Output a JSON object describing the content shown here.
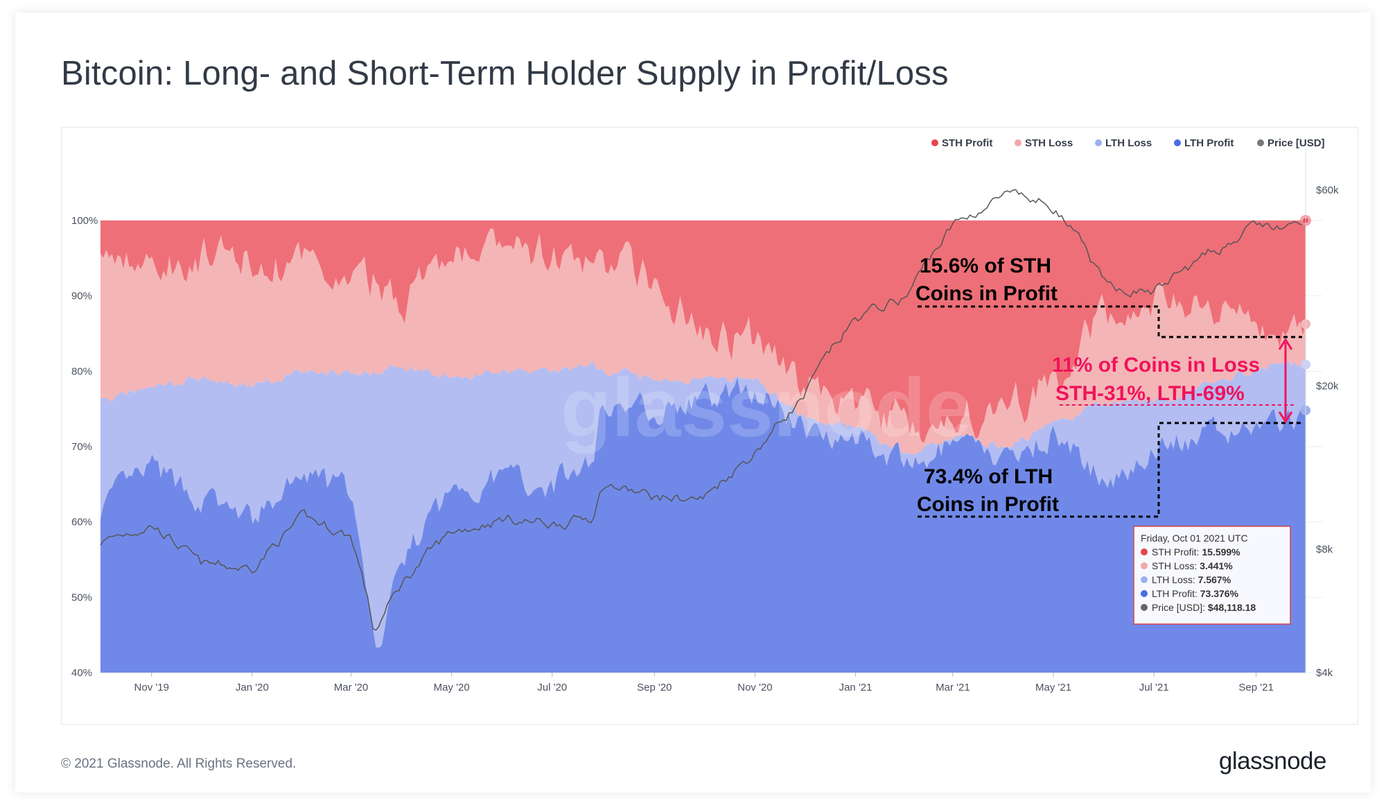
{
  "title": "Bitcoin: Long- and Short-Term Holder Supply in Profit/Loss",
  "footer": {
    "copyright": "© 2021 Glassnode. All Rights Reserved.",
    "brand": "glassnode"
  },
  "watermark": "glassnode",
  "colors": {
    "sth_profit": "#ee6f78",
    "sth_loss": "#f4b5b6",
    "lth_loss": "#b3bdf1",
    "lth_profit": "#7089e8",
    "price": "#555555",
    "accent": "#f0135c"
  },
  "legend": [
    {
      "label": "STH Profit",
      "color": "#e8454f"
    },
    {
      "label": "STH Loss",
      "color": "#f4a6a8"
    },
    {
      "label": "LTH Loss",
      "color": "#9db0ef"
    },
    {
      "label": "LTH Profit",
      "color": "#4a6de3"
    },
    {
      "label": "Price [USD]",
      "color": "#777777"
    }
  ],
  "annotations": {
    "sth_profit": [
      "15.6% of STH",
      "Coins in Profit"
    ],
    "lth_profit": [
      "73.4% of LTH",
      "Coins in Profit"
    ],
    "loss": [
      "11% of Coins in Loss",
      "STH-31%, LTH-69%"
    ]
  },
  "tooltip": {
    "date": "Friday, Oct 01 2021 UTC",
    "rows": [
      {
        "label": "STH Profit:",
        "value": "15.599%",
        "color": "#e8454f"
      },
      {
        "label": "STH Loss:",
        "value": "3.441%",
        "color": "#f4a6a8"
      },
      {
        "label": "LTH Loss:",
        "value": "7.567%",
        "color": "#9db0ef"
      },
      {
        "label": "LTH Profit:",
        "value": "73.376%",
        "color": "#4a6de3"
      },
      {
        "label": "Price [USD]:",
        "value": "$48,118.18",
        "color": "#666666"
      }
    ]
  },
  "chart_data": {
    "type": "area",
    "title": "Bitcoin: Long- and Short-Term Holder Supply in Profit/Loss",
    "x_ticks": [
      "Nov '19",
      "Jan '20",
      "Mar '20",
      "May '20",
      "Jul '20",
      "Sep '20",
      "Nov '20",
      "Jan '21",
      "Mar '21",
      "May '21",
      "Jul '21",
      "Sep '21"
    ],
    "y_left_ticks": [
      "40%",
      "50%",
      "60%",
      "70%",
      "80%",
      "90%",
      "100%"
    ],
    "y_left_range": [
      40,
      100
    ],
    "y_right_ticks": [
      "$4k",
      "$8k",
      "$20k",
      "$60k"
    ],
    "y_right_range_log_usd": [
      4000,
      60000
    ],
    "dates": [
      "2019-10-01",
      "2019-11-01",
      "2019-12-01",
      "2020-01-01",
      "2020-02-01",
      "2020-03-01",
      "2020-03-15",
      "2020-04-01",
      "2020-05-01",
      "2020-06-01",
      "2020-07-01",
      "2020-07-25",
      "2020-08-01",
      "2020-09-01",
      "2020-10-01",
      "2020-11-01",
      "2020-12-01",
      "2021-01-01",
      "2021-02-01",
      "2021-03-01",
      "2021-04-01",
      "2021-05-01",
      "2021-06-01",
      "2021-07-01",
      "2021-08-01",
      "2021-09-01",
      "2021-10-01"
    ],
    "series": [
      {
        "name": "LTH Profit",
        "values": [
          62,
          67,
          63,
          60,
          66,
          64,
          42,
          55,
          64,
          66,
          65,
          68,
          76,
          75,
          76,
          78,
          72,
          72,
          67,
          70,
          68,
          72,
          65,
          70,
          71,
          73,
          73.4
        ]
      },
      {
        "name": "LTH Loss",
        "values": [
          14,
          11,
          16,
          18,
          14,
          16,
          38,
          26,
          15,
          14,
          15,
          13,
          4,
          4,
          3,
          1,
          2,
          0.5,
          2,
          1,
          2,
          1,
          11,
          6,
          7,
          7,
          7.6
        ]
      },
      {
        "name": "STH Loss",
        "values": [
          20,
          16,
          16,
          17,
          14,
          12,
          12,
          9,
          16,
          16,
          15,
          13,
          15,
          13,
          7,
          5,
          4,
          3,
          4,
          2,
          5,
          5,
          12,
          13,
          12,
          5,
          3.4
        ]
      },
      {
        "name": "STH Profit",
        "values": [
          4,
          6,
          5,
          5,
          6,
          8,
          8,
          10,
          5,
          4,
          5,
          6,
          5,
          8,
          14,
          16,
          22,
          24.5,
          27,
          27,
          25,
          22,
          12,
          11,
          10,
          15,
          15.6
        ]
      },
      {
        "name": "Price [USD]",
        "values": [
          8300,
          9200,
          7300,
          7200,
          9500,
          8600,
          5000,
          6600,
          8800,
          9500,
          9200,
          9600,
          11500,
          10700,
          10600,
          13800,
          18800,
          29000,
          33000,
          49000,
          58000,
          55000,
          35000,
          34000,
          41000,
          49000,
          48118
        ]
      }
    ]
  }
}
